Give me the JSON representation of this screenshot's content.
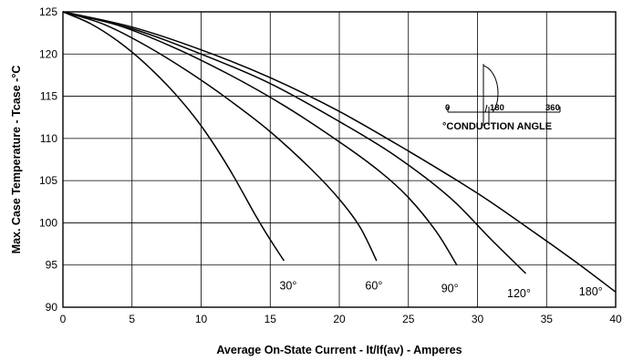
{
  "chart_data": {
    "type": "line",
    "xlabel": "Average On-State Current - It/If(av) - Amperes",
    "ylabel": "Max. Case Temperature - Tcase -°C",
    "xlim": [
      0,
      40
    ],
    "ylim": [
      90,
      125
    ],
    "x_ticks": [
      "0",
      "5",
      "10",
      "15",
      "20",
      "25",
      "30",
      "35",
      "40"
    ],
    "y_ticks": [
      "90",
      "95",
      "100",
      "105",
      "110",
      "115",
      "120",
      "125"
    ],
    "grid": true,
    "series": [
      {
        "name": "30°",
        "label_at": [
          16.3,
          92.1
        ],
        "points": [
          [
            0,
            125
          ],
          [
            2,
            123.6
          ],
          [
            4,
            121.5
          ],
          [
            6,
            118.8
          ],
          [
            8,
            115.5
          ],
          [
            10,
            111.5
          ],
          [
            12,
            106.5
          ],
          [
            14,
            100.7
          ],
          [
            15,
            98.0
          ],
          [
            16,
            95.5
          ]
        ]
      },
      {
        "name": "60°",
        "label_at": [
          22.5,
          92.1
        ],
        "points": [
          [
            0,
            125
          ],
          [
            3,
            123.5
          ],
          [
            6,
            121.0
          ],
          [
            9,
            118.0
          ],
          [
            12,
            114.6
          ],
          [
            15,
            110.8
          ],
          [
            18,
            106.3
          ],
          [
            20,
            102.8
          ],
          [
            21.5,
            99.5
          ],
          [
            22.7,
            95.5
          ]
        ]
      },
      {
        "name": "90°",
        "label_at": [
          28.0,
          91.8
        ],
        "points": [
          [
            0,
            125
          ],
          [
            4,
            123.4
          ],
          [
            8,
            120.8
          ],
          [
            12,
            117.6
          ],
          [
            16,
            113.9
          ],
          [
            20,
            109.6
          ],
          [
            23,
            106.0
          ],
          [
            25,
            103.0
          ],
          [
            27,
            99.0
          ],
          [
            28.5,
            95.0
          ]
        ]
      },
      {
        "name": "120°",
        "label_at": [
          33.0,
          91.2
        ],
        "points": [
          [
            0,
            125
          ],
          [
            5,
            123.0
          ],
          [
            10,
            120.0
          ],
          [
            15,
            116.5
          ],
          [
            20,
            112.0
          ],
          [
            24,
            108.0
          ],
          [
            28,
            103.0
          ],
          [
            31,
            98.0
          ],
          [
            33.5,
            94.0
          ]
        ]
      },
      {
        "name": "180°",
        "label_at": [
          38.2,
          91.4
        ],
        "points": [
          [
            0,
            125
          ],
          [
            5,
            123.2
          ],
          [
            10,
            120.5
          ],
          [
            15,
            117.2
          ],
          [
            20,
            113.2
          ],
          [
            25,
            108.5
          ],
          [
            30,
            103.5
          ],
          [
            34,
            99.0
          ],
          [
            37,
            95.5
          ],
          [
            40,
            91.8
          ]
        ]
      }
    ],
    "inset": {
      "title": "°CONDUCTION ANGLE",
      "labels": [
        "0",
        "180",
        "360"
      ]
    }
  }
}
